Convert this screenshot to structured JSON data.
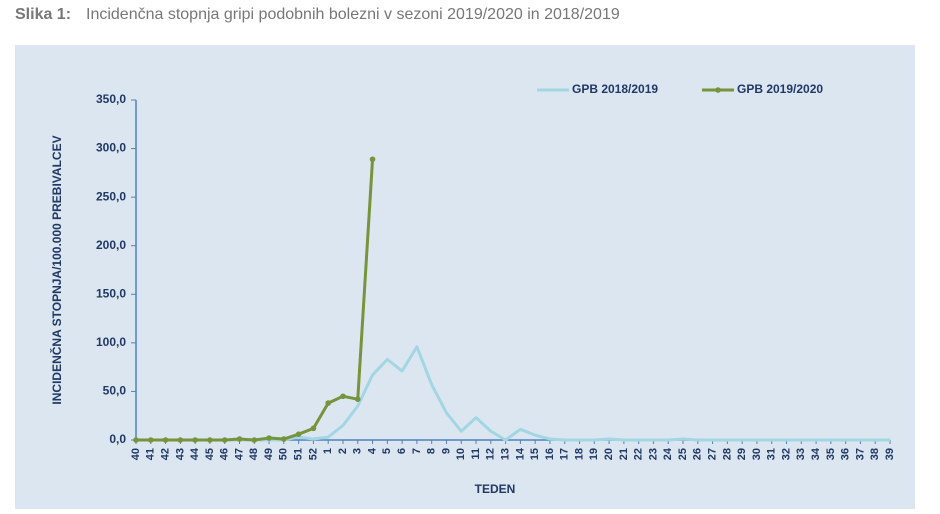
{
  "chart_data": {
    "type": "line",
    "title_label": "Slika 1:",
    "title": "Incidenčna stopnja gripi podobnih bolezni v sezoni 2019/2020 in 2018/2019",
    "x_label": "TEDEN",
    "y_label": "INCIDENČNA STOPNJA/100.000 PREBIVALCEV",
    "categories": [
      "40",
      "41",
      "42",
      "43",
      "44",
      "45",
      "46",
      "47",
      "48",
      "49",
      "50",
      "51",
      "52",
      "1",
      "2",
      "3",
      "4",
      "5",
      "6",
      "7",
      "8",
      "9",
      "10",
      "11",
      "12",
      "13",
      "14",
      "15",
      "16",
      "17",
      "18",
      "19",
      "20",
      "21",
      "22",
      "23",
      "24",
      "25",
      "26",
      "27",
      "28",
      "29",
      "30",
      "31",
      "32",
      "33",
      "34",
      "35",
      "36",
      "37",
      "38",
      "39"
    ],
    "series": [
      {
        "name": "GPB 2018/2019",
        "color": "#a3d6e3",
        "markers": false,
        "values": [
          0,
          0,
          0,
          0,
          0,
          0,
          0,
          0,
          0,
          0,
          0,
          3,
          1,
          3,
          15,
          35,
          67,
          83,
          71,
          96,
          57,
          28,
          9,
          23,
          9,
          0,
          11,
          5,
          1,
          0,
          0,
          0,
          1,
          0,
          0,
          0,
          0,
          1,
          0,
          0,
          0,
          0,
          0,
          0,
          0,
          0,
          0,
          0,
          0,
          0,
          0,
          0
        ]
      },
      {
        "name": "GPB 2019/2020",
        "color": "#77933c",
        "markers": true,
        "values": [
          0,
          0,
          0,
          0,
          0,
          0,
          0,
          1,
          0,
          2,
          1,
          6,
          12,
          38,
          45,
          42,
          289,
          null,
          null,
          null,
          null,
          null,
          null,
          null,
          null,
          null,
          null,
          null,
          null,
          null,
          null,
          null,
          null,
          null,
          null,
          null,
          null,
          null,
          null,
          null,
          null,
          null,
          null,
          null,
          null,
          null,
          null,
          null,
          null,
          null,
          null,
          null
        ]
      }
    ],
    "ylim": [
      0,
      350
    ],
    "yticks": [
      {
        "value": 0,
        "label": "0,0"
      },
      {
        "value": 50,
        "label": "50,0"
      },
      {
        "value": 100,
        "label": "100,0"
      },
      {
        "value": 150,
        "label": "150,0"
      },
      {
        "value": 200,
        "label": "200,0"
      },
      {
        "value": 250,
        "label": "250,0"
      },
      {
        "value": 300,
        "label": "300,0"
      },
      {
        "value": 350,
        "label": "350,0"
      }
    ],
    "legend": "top-right"
  }
}
